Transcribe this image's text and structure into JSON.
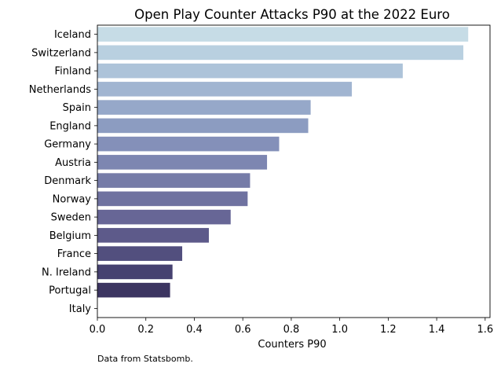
{
  "chart_data": {
    "type": "bar",
    "orientation": "horizontal",
    "title": "Open Play Counter Attacks P90 at the 2022 Euro",
    "xlabel": "Counters P90",
    "ylabel": "",
    "xlim": [
      0,
      1.62
    ],
    "xticks": [
      "0.0",
      "0.2",
      "0.4",
      "0.6",
      "0.8",
      "1.0",
      "1.2",
      "1.4",
      "1.6"
    ],
    "grid": false,
    "categories": [
      "Iceland",
      "Switzerland",
      "Finland",
      "Netherlands",
      "Spain",
      "England",
      "Germany",
      "Austria",
      "Denmark",
      "Norway",
      "Sweden",
      "Belgium",
      "France",
      "N. Ireland",
      "Portugal",
      "Italy"
    ],
    "values": [
      1.53,
      1.51,
      1.26,
      1.05,
      0.88,
      0.87,
      0.75,
      0.7,
      0.63,
      0.62,
      0.55,
      0.46,
      0.35,
      0.31,
      0.3,
      0.0
    ],
    "colors": [
      "#c6dce6",
      "#b9d0e0",
      "#adc3d9",
      "#a1b5d1",
      "#96a8c9",
      "#8c9cc1",
      "#8490b9",
      "#7d86b1",
      "#767ca8",
      "#6f72a0",
      "#676696",
      "#5d5a8a",
      "#524f7e",
      "#464170",
      "#3c3561",
      "#312a52"
    ],
    "source_note": "Data from Statsbomb."
  }
}
